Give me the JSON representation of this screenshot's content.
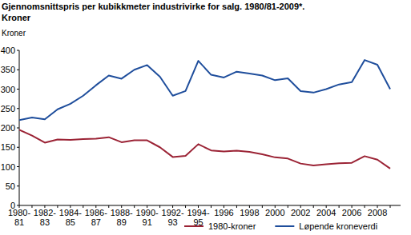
{
  "chart_data": {
    "type": "line",
    "title": "Gjennomsnittspris per kubikkmeter industrivirke for salg. 1980/81-2009*.",
    "subtitle": "Kroner",
    "y_label": "Kroner",
    "categories": [
      "1980-81",
      null,
      "1982-83",
      null,
      "1984-85",
      null,
      "1986-87",
      null,
      "1988-89",
      null,
      "1990-91",
      null,
      "1992-93",
      null,
      "1994-95",
      null,
      "1996",
      null,
      "1998",
      null,
      "2000",
      null,
      "2002",
      null,
      "2004",
      null,
      "2006",
      null,
      "2008",
      null
    ],
    "series": [
      {
        "name": "1980-kroner",
        "color": "#9b2335",
        "values": [
          195,
          180,
          162,
          170,
          169,
          171,
          172,
          176,
          163,
          168,
          168,
          150,
          125,
          128,
          158,
          142,
          139,
          141,
          138,
          132,
          124,
          121,
          108,
          103,
          106,
          109,
          110,
          127,
          118,
          95
        ]
      },
      {
        "name": "Løpende kroneverdi",
        "color": "#1f4e9c",
        "values": [
          220,
          227,
          222,
          248,
          262,
          283,
          310,
          335,
          327,
          350,
          362,
          332,
          283,
          295,
          373,
          337,
          330,
          345,
          340,
          335,
          323,
          328,
          295,
          291,
          300,
          312,
          318,
          375,
          363,
          300
        ]
      }
    ],
    "ylim": [
      0,
      400
    ],
    "yticks": [
      0,
      50,
      100,
      150,
      200,
      250,
      300,
      350,
      400
    ],
    "grid": false,
    "legend": "bottom"
  }
}
